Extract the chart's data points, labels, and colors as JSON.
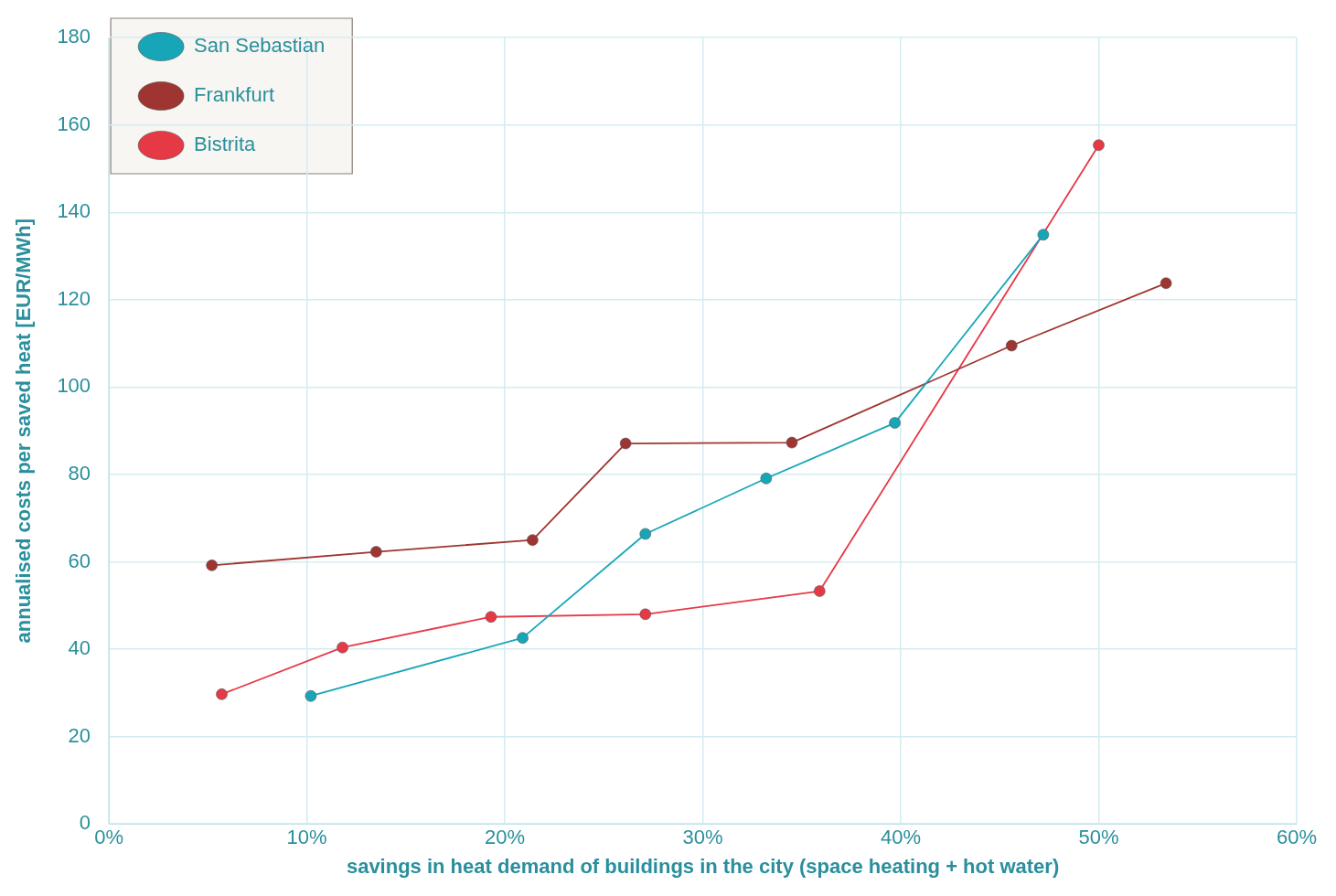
{
  "chart_data": {
    "type": "line",
    "xlabel": "savings in heat demand of buildings in the city (space heating + hot water)",
    "ylabel": "annualised costs per saved heat [EUR/MWh]",
    "xlim": [
      0,
      60
    ],
    "xticks": [
      {
        "value": 0,
        "label": "0%"
      },
      {
        "value": 10,
        "label": "10%"
      },
      {
        "value": 20,
        "label": "20%"
      },
      {
        "value": 30,
        "label": "30%"
      },
      {
        "value": 40,
        "label": "40%"
      },
      {
        "value": 50,
        "label": "50%"
      },
      {
        "value": 60,
        "label": "60%"
      }
    ],
    "ylim": [
      0,
      180
    ],
    "yticks": [
      0,
      20,
      40,
      60,
      80,
      100,
      120,
      140,
      160,
      180
    ],
    "grid": true,
    "legend": "top left",
    "marker": "circle",
    "line_style": "solid",
    "series": [
      {
        "name": "San Sebastian",
        "color": "#17a6b8",
        "x": [
          10.2,
          20.9,
          27.1,
          33.2,
          39.7,
          47.2
        ],
        "values": [
          29.3,
          42.6,
          66.4,
          79.1,
          91.8,
          134.9
        ]
      },
      {
        "name": "Frankfurt",
        "color": "#9e3530",
        "x": [
          5.2,
          13.5,
          21.4,
          26.1,
          34.5,
          45.6,
          53.4
        ],
        "values": [
          59.2,
          62.3,
          65.0,
          87.1,
          87.3,
          109.5,
          123.8
        ]
      },
      {
        "name": "Bistrita",
        "color": "#e63946",
        "x": [
          5.7,
          11.8,
          19.3,
          27.1,
          35.9,
          50.0
        ],
        "values": [
          29.7,
          40.4,
          47.4,
          48.0,
          53.3,
          155.4
        ]
      }
    ]
  }
}
